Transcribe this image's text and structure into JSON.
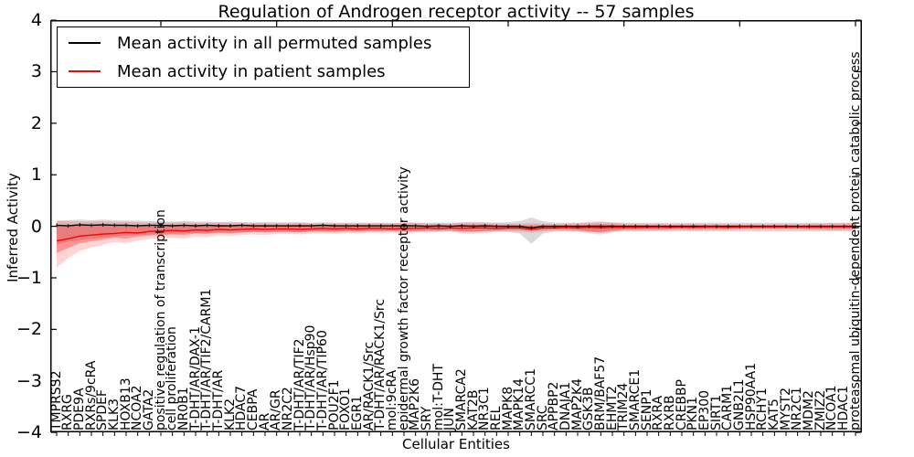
{
  "legend": {
    "entries": [
      {
        "label": "Mean activity in all permuted samples",
        "color": "#000000"
      },
      {
        "label": "Mean activity in patient samples",
        "color": "#ff0000"
      }
    ]
  },
  "colors": {
    "permuted_line": "#000000",
    "patient_line": "#ff0000",
    "permuted_band": "rgba(128,128,128,0.30)",
    "patient_band_outer": "rgba(255,0,0,0.17)",
    "patient_band_inner": "rgba(255,0,0,0.30)",
    "frame": "#000000",
    "background": "#ffffff"
  },
  "chart_data": {
    "type": "line",
    "title": "Regulation of Androgen receptor activity -- 57 samples",
    "xlabel": "Cellular Entities",
    "ylabel": "Inferred Activity",
    "ylim": [
      -4,
      4
    ],
    "yticks": [
      "4",
      "3",
      "2",
      "1",
      "0",
      "−1",
      "−2",
      "−3",
      "−4"
    ],
    "grid": false,
    "legend_position": "upper left",
    "categories": [
      "TMPRSS2",
      "RXRG",
      "PDE9A",
      "RXRs/9cRA",
      "SPDEF",
      "KLK3",
      "HOXB13",
      "NCOA2",
      "GATA2",
      "positive regulation of transcription",
      "cell proliferation",
      "NR0B1",
      "T-DHT/AR/DAX-1",
      "T-DHT/AR/TIF2/CARM1",
      "T-DHT/AR",
      "KLK2",
      "HDAC7",
      "CEBPA",
      "AR",
      "AR/GR",
      "NR2C2",
      "T-DHT/AR/TIF2",
      "T-DHT/AR/Hsp90",
      "T-DHT/AR/TIP60",
      "POU2F1",
      "FOXO1",
      "EGR1",
      "AR/RACK1/Src",
      "T-DHT/AR/RACK1/Src",
      "mol:9cRA",
      "epidermal growth factor receptor activity",
      "MAP2K6",
      "SRY",
      "mol:T-DHT",
      "JUN",
      "SMARCA2",
      "KAT2B",
      "NR3C1",
      "REL",
      "MAPK8",
      "MAPK14",
      "SMARCC1",
      "SRC",
      "APPBP2",
      "DNAJA1",
      "MAP2K4",
      "GSK3B",
      "BRM/BAF57",
      "EHMT2",
      "TRIM24",
      "SMARCE1",
      "SENP1",
      "RXRA",
      "RXRB",
      "CREBBP",
      "PKN1",
      "EP300",
      "SIRT1",
      "CARM1",
      "GNB2L1",
      "HSP90AA1",
      "RCHY1",
      "KAT5",
      "MYST2",
      "NR2C1",
      "MDM2",
      "ZMIZ2",
      "NCOA1",
      "HDAC1",
      "proteasomal ubiquitin-dependent protein catabolic process"
    ],
    "series": [
      {
        "name": "Mean activity in all permuted samples",
        "color": "#000000",
        "values": [
          0.02,
          0.01,
          0.03,
          0.02,
          0.03,
          0.02,
          0.02,
          0.01,
          0.02,
          0.02,
          0.01,
          0.02,
          0.01,
          0.02,
          0.01,
          0.01,
          0.02,
          0.01,
          0.01,
          0.01,
          0.01,
          0.01,
          0.01,
          0.02,
          0.01,
          0.01,
          0.01,
          0.01,
          0.01,
          0.01,
          0.01,
          0.01,
          0.0,
          0.01,
          0.0,
          0.01,
          0.0,
          0.01,
          0.0,
          0.0,
          0.0,
          -0.03,
          0.0,
          0.0,
          0.0,
          0.0,
          0.0,
          0.0,
          0.0,
          0.0,
          0.0,
          0.0,
          0.0,
          0.0,
          0.0,
          0.0,
          0.0,
          0.0,
          0.0,
          0.0,
          0.0,
          0.0,
          0.0,
          0.0,
          0.0,
          0.0,
          0.0,
          0.0,
          0.0,
          0.0
        ]
      },
      {
        "name": "Mean activity in patient samples",
        "color": "#ff0000",
        "values": [
          -0.28,
          -0.24,
          -0.19,
          -0.17,
          -0.15,
          -0.14,
          -0.12,
          -0.13,
          -0.1,
          -0.09,
          -0.08,
          -0.09,
          -0.07,
          -0.08,
          -0.06,
          -0.07,
          -0.06,
          -0.05,
          -0.06,
          -0.05,
          -0.05,
          -0.06,
          -0.05,
          -0.04,
          -0.05,
          -0.04,
          -0.05,
          -0.04,
          -0.04,
          -0.05,
          -0.04,
          -0.04,
          -0.03,
          -0.04,
          -0.03,
          -0.04,
          -0.03,
          -0.03,
          -0.04,
          -0.03,
          -0.03,
          -0.06,
          -0.03,
          -0.03,
          -0.02,
          -0.03,
          -0.02,
          -0.03,
          -0.02,
          -0.02,
          -0.02,
          -0.02,
          -0.01,
          -0.02,
          -0.01,
          -0.02,
          -0.01,
          -0.01,
          -0.02,
          -0.01,
          -0.01,
          -0.01,
          -0.01,
          -0.01,
          -0.01,
          -0.01,
          -0.01,
          -0.01,
          -0.01,
          -0.01
        ]
      }
    ],
    "bands": [
      {
        "name": "permuted-samples-band",
        "color": "rgba(128,128,128,0.30)",
        "upper": [
          0.1,
          0.12,
          0.13,
          0.12,
          0.13,
          0.12,
          0.11,
          0.11,
          0.1,
          0.1,
          0.09,
          0.1,
          0.09,
          0.09,
          0.08,
          0.09,
          0.08,
          0.08,
          0.08,
          0.08,
          0.08,
          0.08,
          0.07,
          0.08,
          0.07,
          0.07,
          0.07,
          0.07,
          0.07,
          0.07,
          0.07,
          0.07,
          0.07,
          0.07,
          0.07,
          0.07,
          0.07,
          0.07,
          0.07,
          0.08,
          0.1,
          0.17,
          0.1,
          0.07,
          0.07,
          0.07,
          0.07,
          0.08,
          0.07,
          0.07,
          0.07,
          0.07,
          0.07,
          0.07,
          0.07,
          0.07,
          0.07,
          0.07,
          0.07,
          0.07,
          0.07,
          0.07,
          0.07,
          0.07,
          0.07,
          0.07,
          0.07,
          0.07,
          0.07,
          0.07
        ],
        "lower": [
          -0.35,
          -0.3,
          -0.27,
          -0.24,
          -0.22,
          -0.2,
          -0.18,
          -0.17,
          -0.16,
          -0.15,
          -0.14,
          -0.14,
          -0.13,
          -0.13,
          -0.12,
          -0.12,
          -0.12,
          -0.11,
          -0.11,
          -0.11,
          -0.11,
          -0.11,
          -0.1,
          -0.1,
          -0.1,
          -0.1,
          -0.1,
          -0.1,
          -0.1,
          -0.1,
          -0.1,
          -0.1,
          -0.1,
          -0.1,
          -0.1,
          -0.1,
          -0.1,
          -0.1,
          -0.1,
          -0.11,
          -0.14,
          -0.34,
          -0.14,
          -0.1,
          -0.1,
          -0.1,
          -0.1,
          -0.13,
          -0.1,
          -0.1,
          -0.1,
          -0.1,
          -0.1,
          -0.1,
          -0.1,
          -0.1,
          -0.1,
          -0.1,
          -0.1,
          -0.1,
          -0.1,
          -0.1,
          -0.1,
          -0.1,
          -0.1,
          -0.1,
          -0.1,
          -0.1,
          -0.1,
          -0.1
        ]
      },
      {
        "name": "patient-samples-band-outer",
        "color": "rgba(255,0,0,0.17)",
        "upper": [
          0.12,
          0.1,
          0.09,
          0.09,
          0.1,
          0.08,
          0.09,
          0.08,
          0.07,
          0.08,
          0.07,
          0.08,
          0.07,
          0.07,
          0.08,
          0.07,
          0.07,
          0.06,
          0.07,
          0.06,
          0.06,
          0.07,
          0.06,
          0.06,
          0.06,
          0.06,
          0.06,
          0.06,
          0.06,
          0.05,
          0.08,
          0.07,
          0.05,
          0.06,
          0.05,
          0.08,
          0.09,
          0.08,
          0.06,
          0.05,
          0.05,
          0.06,
          0.05,
          0.05,
          0.05,
          0.06,
          0.09,
          0.1,
          0.08,
          0.05,
          0.05,
          0.04,
          0.05,
          0.04,
          0.04,
          0.05,
          0.04,
          0.04,
          0.04,
          0.04,
          0.04,
          0.04,
          0.04,
          0.04,
          0.04,
          0.05,
          0.05,
          0.06,
          0.06,
          0.05
        ],
        "lower": [
          -0.8,
          -0.62,
          -0.48,
          -0.41,
          -0.36,
          -0.31,
          -0.33,
          -0.28,
          -0.25,
          -0.24,
          -0.22,
          -0.24,
          -0.2,
          -0.21,
          -0.18,
          -0.19,
          -0.17,
          -0.16,
          -0.17,
          -0.15,
          -0.15,
          -0.16,
          -0.14,
          -0.14,
          -0.15,
          -0.13,
          -0.14,
          -0.12,
          -0.13,
          -0.12,
          -0.14,
          -0.12,
          -0.12,
          -0.11,
          -0.1,
          -0.14,
          -0.15,
          -0.13,
          -0.11,
          -0.1,
          -0.1,
          -0.12,
          -0.1,
          -0.09,
          -0.09,
          -0.1,
          -0.14,
          -0.16,
          -0.12,
          -0.08,
          -0.08,
          -0.08,
          -0.08,
          -0.07,
          -0.07,
          -0.08,
          -0.07,
          -0.07,
          -0.07,
          -0.06,
          -0.06,
          -0.06,
          -0.06,
          -0.06,
          -0.06,
          -0.07,
          -0.07,
          -0.08,
          -0.07,
          -0.06
        ]
      },
      {
        "name": "patient-samples-band-inner",
        "color": "rgba(255,0,0,0.30)",
        "upper": [
          0.02,
          0.01,
          0.02,
          0.02,
          0.03,
          0.02,
          0.03,
          0.02,
          0.02,
          0.03,
          0.02,
          0.03,
          0.02,
          0.02,
          0.03,
          0.02,
          0.02,
          0.02,
          0.02,
          0.02,
          0.02,
          0.03,
          0.02,
          0.02,
          0.02,
          0.02,
          0.02,
          0.02,
          0.02,
          0.02,
          0.03,
          0.02,
          0.02,
          0.02,
          0.02,
          0.03,
          0.03,
          0.03,
          0.02,
          0.02,
          0.02,
          0.02,
          0.02,
          0.02,
          0.02,
          0.02,
          0.03,
          0.04,
          0.03,
          0.02,
          0.02,
          0.02,
          0.02,
          0.02,
          0.02,
          0.02,
          0.02,
          0.02,
          0.02,
          0.02,
          0.02,
          0.02,
          0.02,
          0.02,
          0.02,
          0.02,
          0.02,
          0.02,
          0.02,
          0.02
        ],
        "lower": [
          -0.52,
          -0.42,
          -0.33,
          -0.29,
          -0.26,
          -0.22,
          -0.24,
          -0.2,
          -0.18,
          -0.17,
          -0.16,
          -0.17,
          -0.14,
          -0.15,
          -0.13,
          -0.14,
          -0.12,
          -0.11,
          -0.12,
          -0.11,
          -0.11,
          -0.12,
          -0.1,
          -0.1,
          -0.11,
          -0.09,
          -0.1,
          -0.09,
          -0.09,
          -0.08,
          -0.1,
          -0.09,
          -0.08,
          -0.08,
          -0.07,
          -0.1,
          -0.11,
          -0.09,
          -0.08,
          -0.07,
          -0.07,
          -0.09,
          -0.07,
          -0.06,
          -0.06,
          -0.07,
          -0.1,
          -0.11,
          -0.08,
          -0.06,
          -0.06,
          -0.05,
          -0.06,
          -0.05,
          -0.05,
          -0.05,
          -0.05,
          -0.05,
          -0.05,
          -0.04,
          -0.04,
          -0.04,
          -0.04,
          -0.04,
          -0.04,
          -0.05,
          -0.05,
          -0.05,
          -0.05,
          -0.04
        ]
      }
    ]
  }
}
